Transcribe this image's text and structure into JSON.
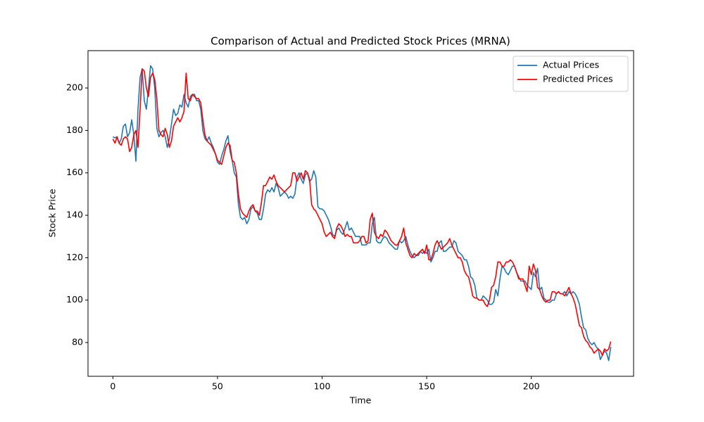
{
  "chart_data": {
    "type": "line",
    "title": "Comparison of Actual and Predicted Stock Prices (MRNA)",
    "xlabel": "Time",
    "ylabel": "Stock Price",
    "x": [
      0,
      1,
      2,
      3,
      4,
      5,
      6,
      7,
      8,
      9,
      10,
      11,
      12,
      13,
      14,
      15,
      16,
      17,
      18,
      19,
      20,
      21,
      22,
      23,
      24,
      25,
      26,
      27,
      28,
      29,
      30,
      31,
      32,
      33,
      34,
      35,
      36,
      37,
      38,
      39,
      40,
      41,
      42,
      43,
      44,
      45,
      46,
      47,
      48,
      49,
      50,
      51,
      52,
      53,
      54,
      55,
      56,
      57,
      58,
      59,
      60,
      61,
      62,
      63,
      64,
      65,
      66,
      67,
      68,
      69,
      70,
      71,
      72,
      73,
      74,
      75,
      76,
      77,
      78,
      79,
      80,
      81,
      82,
      83,
      84,
      85,
      86,
      87,
      88,
      89,
      90,
      91,
      92,
      93,
      94,
      95,
      96,
      97,
      98,
      99,
      100,
      101,
      102,
      103,
      104,
      105,
      106,
      107,
      108,
      109,
      110,
      111,
      112,
      113,
      114,
      115,
      116,
      117,
      118,
      119,
      120,
      121,
      122,
      123,
      124,
      125,
      126,
      127,
      128,
      129,
      130,
      131,
      132,
      133,
      134,
      135,
      136,
      137,
      138,
      139,
      140,
      141,
      142,
      143,
      144,
      145,
      146,
      147,
      148,
      149,
      150,
      151,
      152,
      153,
      154,
      155,
      156,
      157,
      158,
      159,
      160,
      161,
      162,
      163,
      164,
      165,
      166,
      167,
      168,
      169,
      170,
      171,
      172,
      173,
      174,
      175,
      176,
      177,
      178,
      179,
      180,
      181,
      182,
      183,
      184,
      185,
      186,
      187,
      188,
      189,
      190,
      191,
      192,
      193,
      194,
      195,
      196,
      197,
      198,
      199,
      200,
      201,
      202,
      203,
      204,
      205,
      206,
      207,
      208,
      209,
      210,
      211,
      212,
      213,
      214,
      215,
      216,
      217,
      218,
      219,
      220,
      221,
      222,
      223,
      224,
      225,
      226,
      227,
      228,
      229,
      230,
      231,
      232,
      233,
      234,
      235,
      236,
      237,
      238
    ],
    "series": [
      {
        "name": "Actual Prices",
        "color": "#1f77b4",
        "values": [
          177,
          176.5,
          177,
          174,
          176,
          182,
          183,
          177,
          179,
          185,
          178,
          165.5,
          190,
          205,
          209,
          194,
          190,
          200,
          210.5,
          209,
          200,
          181,
          177,
          179,
          180,
          177,
          172,
          176,
          183,
          190,
          187,
          188,
          192,
          191,
          197,
          193,
          191,
          196,
          197,
          197,
          194,
          194,
          190,
          180,
          176,
          175,
          177,
          174,
          172,
          169,
          165,
          164,
          168,
          171,
          175,
          177.5,
          170,
          166,
          160,
          158,
          145,
          139,
          138,
          139,
          136,
          138,
          143,
          144,
          142,
          141,
          138,
          138,
          143,
          150,
          152,
          151,
          153,
          151,
          155,
          153,
          149,
          150,
          151,
          150,
          148,
          149,
          148,
          150,
          158,
          160,
          157,
          155,
          159,
          160,
          156,
          157,
          161,
          158,
          144,
          143,
          143,
          142,
          140,
          138,
          135,
          131,
          130,
          133,
          134,
          132,
          131,
          134,
          137,
          133,
          134,
          132,
          130,
          130,
          130,
          126,
          126,
          126,
          127,
          127,
          136,
          139,
          128,
          127,
          127,
          129,
          130,
          129,
          127,
          126,
          125,
          124,
          124,
          128,
          127,
          128,
          130,
          126,
          123,
          121,
          120,
          121,
          121,
          123,
          122,
          123,
          122,
          124,
          118,
          120,
          123,
          123,
          127,
          128,
          123,
          123,
          124,
          125,
          125,
          128,
          127,
          123,
          122,
          121,
          119,
          119,
          116,
          111,
          110,
          107,
          101,
          100,
          100,
          102,
          101,
          100,
          98,
          98,
          99,
          105,
          102,
          110,
          116,
          115,
          113,
          112,
          114,
          116,
          116,
          113,
          111,
          109,
          109,
          109,
          107,
          106,
          105,
          113,
          111,
          115,
          105,
          106,
          101,
          100,
          99,
          99,
          100,
          100,
          103,
          104,
          103,
          103,
          104,
          102,
          104,
          103,
          104,
          103,
          101,
          98,
          92,
          87,
          86,
          82,
          80,
          79,
          80,
          78,
          77,
          72,
          74,
          76,
          75,
          71.5,
          78
        ]
      },
      {
        "name": "Predicted Prices",
        "color": "#ff0000",
        "values": [
          176,
          174,
          177,
          174,
          173,
          176,
          177,
          176,
          170,
          172,
          178,
          180,
          172,
          190,
          209,
          208,
          200,
          196,
          205,
          207,
          204,
          195,
          180,
          178,
          177,
          181,
          178,
          172,
          175,
          182,
          184,
          186,
          184,
          186,
          189,
          207,
          195,
          194,
          197,
          196,
          195,
          195,
          193,
          185,
          178,
          175,
          174,
          173,
          171,
          169,
          166,
          165,
          164,
          168,
          172,
          174,
          173,
          166,
          165,
          160,
          150,
          143,
          141,
          140,
          139,
          142,
          144,
          145,
          142,
          142,
          140,
          146,
          154,
          154,
          156,
          158,
          157,
          159,
          156,
          154,
          153,
          152,
          151,
          152,
          153,
          154,
          160,
          160,
          156,
          158,
          160,
          157,
          161,
          160,
          157,
          145,
          143,
          142,
          140,
          138,
          136,
          132,
          130,
          131,
          132,
          130,
          129,
          134,
          136,
          135,
          133,
          130,
          131,
          130,
          130,
          127,
          127,
          127,
          128,
          130,
          130,
          127,
          128,
          138,
          141,
          132,
          130,
          129,
          131,
          130,
          133,
          132,
          130,
          128,
          127,
          126,
          126,
          128,
          130,
          134,
          127,
          124,
          121,
          120,
          122,
          121,
          122,
          123,
          124,
          122,
          126,
          119,
          119,
          122,
          126,
          128,
          126,
          124,
          125,
          126,
          127,
          129,
          126,
          124,
          122,
          120,
          120,
          118,
          114,
          112,
          111,
          107,
          102,
          101,
          101,
          100,
          100,
          100,
          98,
          97,
          100,
          106,
          107,
          111,
          118,
          118,
          116,
          116,
          118,
          118,
          119,
          118,
          116,
          113,
          110,
          110,
          110,
          107,
          104,
          116,
          112,
          117,
          114,
          106,
          105,
          102,
          100,
          99,
          100,
          100,
          104,
          104,
          103,
          104,
          103,
          103,
          102,
          104,
          106,
          103,
          101,
          98,
          93,
          88,
          87,
          83,
          81,
          80,
          78,
          77,
          75,
          76,
          77,
          76,
          74,
          77,
          76,
          77,
          80.5
        ]
      }
    ],
    "xlim": [
      -11.9,
      248.9
    ],
    "xticks": [
      0,
      50,
      100,
      150,
      200
    ],
    "ylim": [
      64.1,
      217.6
    ],
    "yticks": [
      80,
      100,
      120,
      140,
      160,
      180,
      200
    ],
    "legend": "upper right",
    "grid": false
  }
}
